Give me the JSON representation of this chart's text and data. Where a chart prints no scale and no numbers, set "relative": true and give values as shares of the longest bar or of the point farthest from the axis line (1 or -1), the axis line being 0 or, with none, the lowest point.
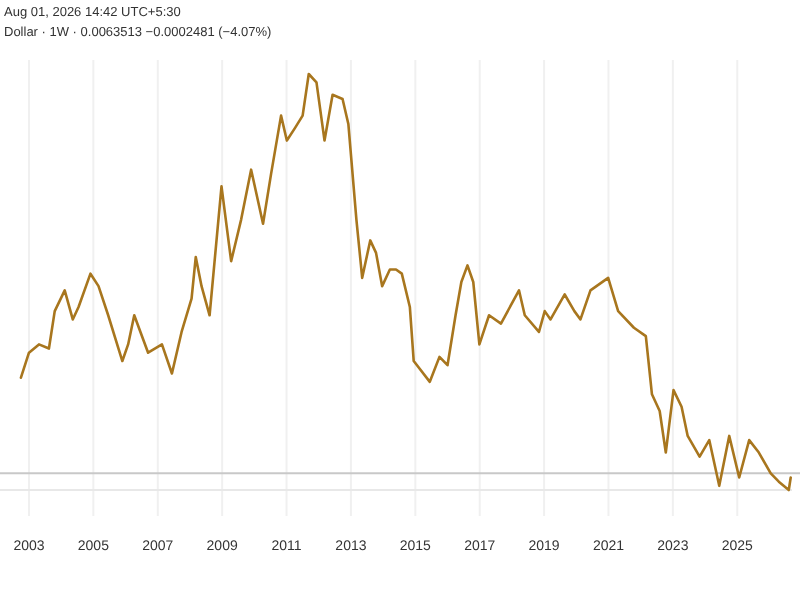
{
  "chart_data": {
    "type": "line",
    "relative": true,
    "annotations": [
      "Aug 01, 2026 14:42 UTC+5:30",
      "Dollar · 1W · 0.0063513 −0.0002481 (−4.07%)"
    ],
    "xlim": [
      2002.1,
      2026.7
    ],
    "xticks": [
      2003,
      2005,
      2007,
      2009,
      2011,
      2013,
      2015,
      2017,
      2019,
      2021,
      2023,
      2025
    ],
    "grid": "x",
    "ref_lines": [
      {
        "axis": "y",
        "value": 0.04,
        "color": "#c8c8c8"
      }
    ],
    "series": [
      {
        "color": "#a8761e",
        "x": [
          2002.75,
          2003.0,
          2003.31,
          2003.62,
          2003.8,
          2004.11,
          2004.36,
          2004.54,
          2004.91,
          2005.16,
          2005.46,
          2005.9,
          2006.08,
          2006.27,
          2006.7,
          2007.13,
          2007.44,
          2007.74,
          2008.05,
          2008.18,
          2008.36,
          2008.61,
          2008.98,
          2009.28,
          2009.59,
          2009.9,
          2010.27,
          2010.52,
          2010.83,
          2011.01,
          2011.26,
          2011.5,
          2011.69,
          2011.93,
          2012.18,
          2012.43,
          2012.74,
          2012.92,
          2013.17,
          2013.35,
          2013.6,
          2013.78,
          2013.97,
          2014.21,
          2014.4,
          2014.58,
          2014.83,
          2014.95,
          2015.45,
          2015.75,
          2016.0,
          2016.25,
          2016.43,
          2016.62,
          2016.8,
          2016.99,
          2017.29,
          2017.66,
          2018.22,
          2018.4,
          2018.84,
          2019.02,
          2019.2,
          2019.64,
          2019.94,
          2020.13,
          2020.44,
          2020.99,
          2021.3,
          2021.79,
          2022.16,
          2022.35,
          2022.59,
          2022.78,
          2023.02,
          2023.27,
          2023.46,
          2023.83,
          2024.13,
          2024.44,
          2024.75,
          2025.06,
          2025.37,
          2025.67,
          2026.04,
          2026.29,
          2026.6,
          2026.66
        ],
        "values": [
          0.27,
          0.33,
          0.35,
          0.34,
          0.43,
          0.48,
          0.41,
          0.44,
          0.52,
          0.49,
          0.42,
          0.31,
          0.35,
          0.42,
          0.33,
          0.35,
          0.28,
          0.38,
          0.46,
          0.56,
          0.49,
          0.42,
          0.73,
          0.55,
          0.65,
          0.77,
          0.64,
          0.76,
          0.9,
          0.84,
          0.87,
          0.9,
          1,
          0.98,
          0.84,
          0.95,
          0.94,
          0.88,
          0.65,
          0.51,
          0.6,
          0.57,
          0.49,
          0.53,
          0.53,
          0.52,
          0.44,
          0.31,
          0.26,
          0.32,
          0.3,
          0.42,
          0.5,
          0.54,
          0.5,
          0.35,
          0.42,
          0.4,
          0.48,
          0.42,
          0.38,
          0.43,
          0.41,
          0.47,
          0.43,
          0.41,
          0.48,
          0.51,
          0.43,
          0.39,
          0.37,
          0.23,
          0.19,
          0.09,
          0.24,
          0.2,
          0.13,
          0.08,
          0.12,
          0.01,
          0.13,
          0.03,
          0.12,
          0.09,
          0.04,
          0.02,
          0,
          0.03
        ]
      }
    ]
  }
}
